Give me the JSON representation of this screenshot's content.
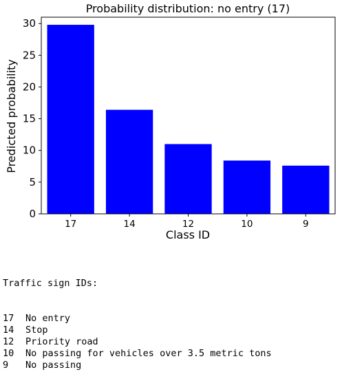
{
  "chart_data": {
    "type": "bar",
    "title": "Probability distribution: no entry (17)",
    "xlabel": "Class ID",
    "ylabel": "Predicted probability",
    "categories": [
      "17",
      "14",
      "12",
      "10",
      "9"
    ],
    "values": [
      29.8,
      16.4,
      11.0,
      8.4,
      7.6
    ],
    "ylim": [
      0,
      31
    ],
    "yticks": [
      0,
      5,
      10,
      15,
      20,
      25,
      30
    ],
    "bar_color": "#0000ff",
    "grid": false,
    "legend": "none"
  },
  "legend": {
    "heading": "Traffic sign IDs:",
    "items": [
      {
        "id": "17",
        "name": "No entry"
      },
      {
        "id": "14",
        "name": "Stop"
      },
      {
        "id": "12",
        "name": "Priority road"
      },
      {
        "id": "10",
        "name": "No passing for vehicles over 3.5 metric tons"
      },
      {
        "id": "9",
        "name": "No passing"
      }
    ]
  }
}
